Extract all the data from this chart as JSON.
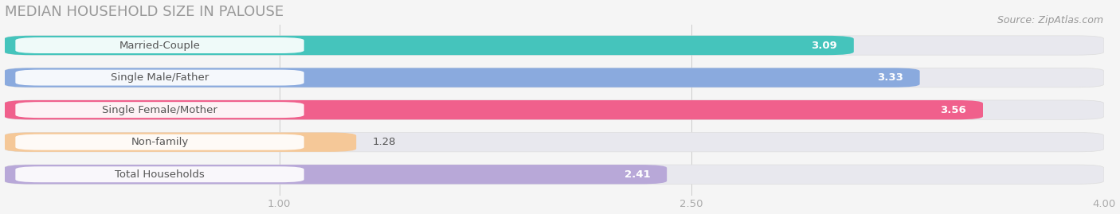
{
  "title": "MEDIAN HOUSEHOLD SIZE IN PALOUSE",
  "source": "Source: ZipAtlas.com",
  "categories": [
    "Married-Couple",
    "Single Male/Father",
    "Single Female/Mother",
    "Non-family",
    "Total Households"
  ],
  "values": [
    3.09,
    3.33,
    3.56,
    1.28,
    2.41
  ],
  "bar_colors": [
    "#45c4bc",
    "#8aaade",
    "#f0608c",
    "#f5c898",
    "#b8a8d8"
  ],
  "xlim": [
    0.0,
    4.0
  ],
  "xticks": [
    1.0,
    2.5,
    4.0
  ],
  "title_color": "#999999",
  "source_color": "#999999",
  "background_color": "#f5f5f5",
  "bar_bg_color": "#e8e8ee",
  "label_pill_color": "#ffffff",
  "label_text_color": "#555555",
  "value_text_color_inside": "#ffffff",
  "value_text_color_outside": "#555555",
  "title_fontsize": 13,
  "label_fontsize": 9.5,
  "value_fontsize": 9.5,
  "tick_fontsize": 9.5,
  "source_fontsize": 9.0
}
